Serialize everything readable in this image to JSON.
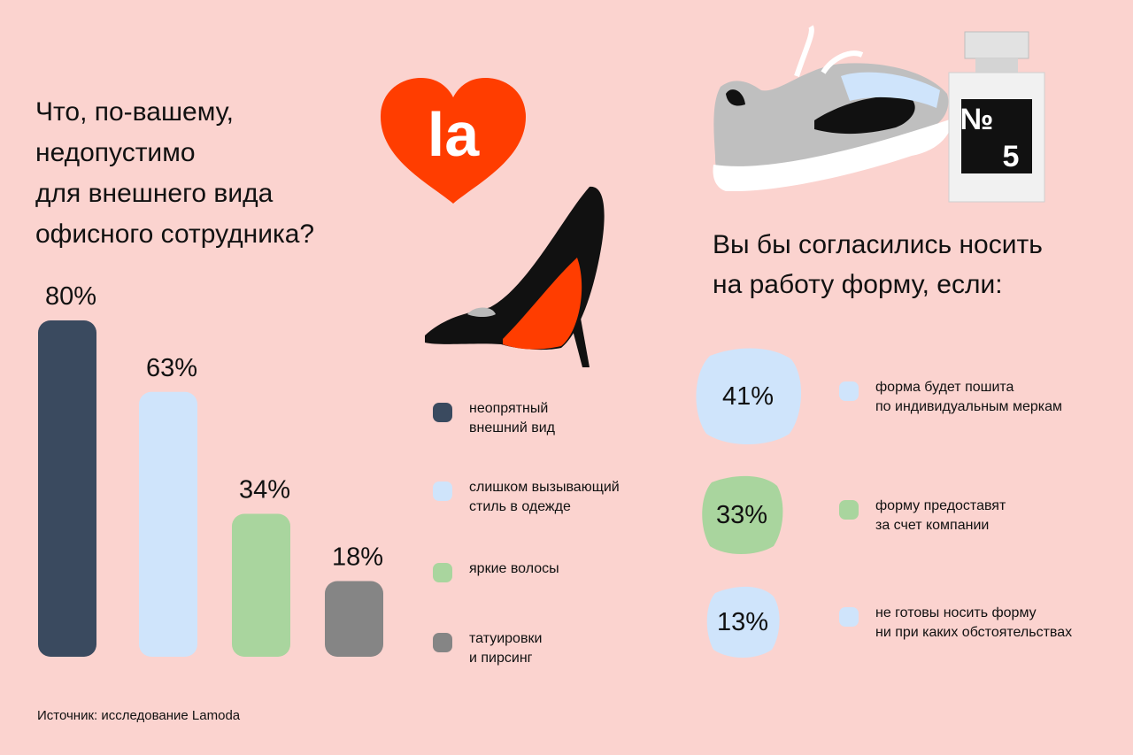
{
  "colors": {
    "background": "#fbd3cf",
    "dark": "#3a4a5f",
    "light_blue": "#cfe4fb",
    "green": "#a9d59e",
    "gray": "#858585",
    "brand_red": "#ff3d00"
  },
  "question1": {
    "title": "Что, по-вашему,\nнедопустимо\nдля внешнего вида\nофисного сотрудника?"
  },
  "chart_data": [
    {
      "type": "bar",
      "categories": [
        "неопрятный внешний вид",
        "слишком вызывающий стиль в одежде",
        "яркие волосы",
        "татуировки и пирсинг"
      ],
      "values": [
        80,
        63,
        34,
        18
      ],
      "value_labels": [
        "80%",
        "63%",
        "34%",
        "18%"
      ],
      "ylim": [
        0,
        80
      ],
      "colors": [
        "#3a4a5f",
        "#cfe4fb",
        "#a9d59e",
        "#858585"
      ],
      "legend": [
        {
          "label": "неопрятный\nвнешний вид",
          "color": "#3a4a5f"
        },
        {
          "label": "слишком вызывающий\nстиль в одежде",
          "color": "#cfe4fb"
        },
        {
          "label": "яркие волосы",
          "color": "#a9d59e"
        },
        {
          "label": "татуировки\nи пирсинг",
          "color": "#858585"
        }
      ],
      "legend_placement": "right"
    },
    {
      "type": "table",
      "title": "Вы бы согласились носить\nна работу форму, если:",
      "rows": [
        {
          "value": 41,
          "value_label": "41%",
          "label": "форма будет пошита\nпо индивидуальным меркам",
          "color": "#cfe4fb"
        },
        {
          "value": 33,
          "value_label": "33%",
          "label": "форму предоставят\nза счет компании",
          "color": "#a9d59e"
        },
        {
          "value": 13,
          "value_label": "13%",
          "label": "не готовы носить форму\nни при каких обстоятельствах",
          "color": "#cfe4fb"
        }
      ]
    }
  ],
  "logo": {
    "text": "la"
  },
  "perfume": {
    "label": "№\n5"
  },
  "source": "Источник: исследование Lamoda"
}
